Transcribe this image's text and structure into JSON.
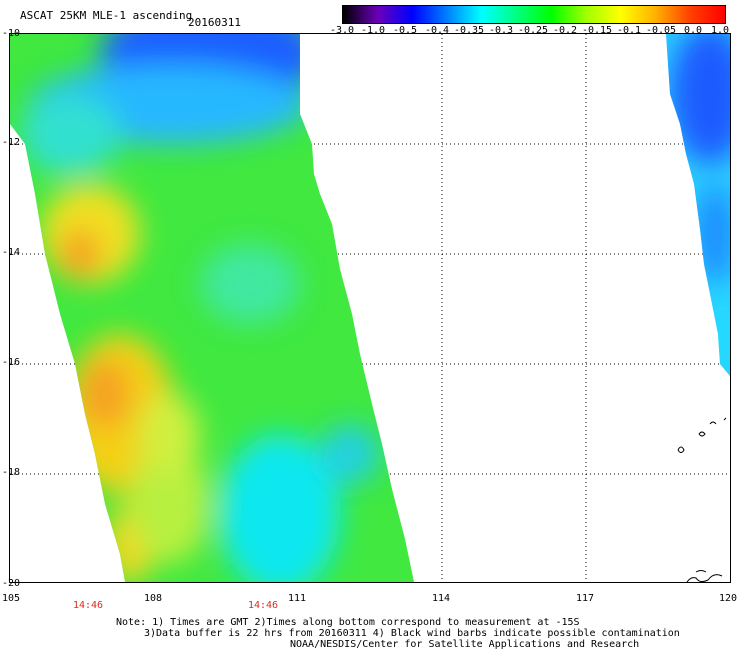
{
  "header": {
    "title": "ASCAT 25KM MLE-1 ascending",
    "date": "20160311"
  },
  "colorbar": {
    "labels": [
      "-3.0",
      "-1.0",
      "-0.5",
      "-0.4",
      "-0.35",
      "-0.3",
      "-0.25",
      "-0.2",
      "-0.15",
      "-0.1",
      "-0.05",
      "0.0",
      "1.0"
    ],
    "colors": [
      "#000000",
      "#6a00b8",
      "#0000ff",
      "#0080ff",
      "#00ffff",
      "#00ff80",
      "#00ff00",
      "#a0ff00",
      "#ffff00",
      "#ffb000",
      "#ff4000",
      "#ff0000"
    ]
  },
  "map": {
    "lon_range": [
      105,
      120
    ],
    "lat_range": [
      -20,
      -10
    ],
    "lat_labels": [
      "-10",
      "-12",
      "-14",
      "-16",
      "-18",
      "-20"
    ],
    "lon_labels": [
      "105",
      "108",
      "111",
      "114",
      "117",
      "120"
    ],
    "grid": true
  },
  "swath_times": [
    "14:46",
    "14:46"
  ],
  "notes": {
    "line1": "Note: 1) Times are GMT 2)Times along bottom correspond to measurement at -15S",
    "line2": "3)Data buffer is 22 hrs from 20160311 4) Black wind barbs indicate possible contamination",
    "line3": "NOAA/NESDIS/Center for Satellite Applications and Research"
  }
}
